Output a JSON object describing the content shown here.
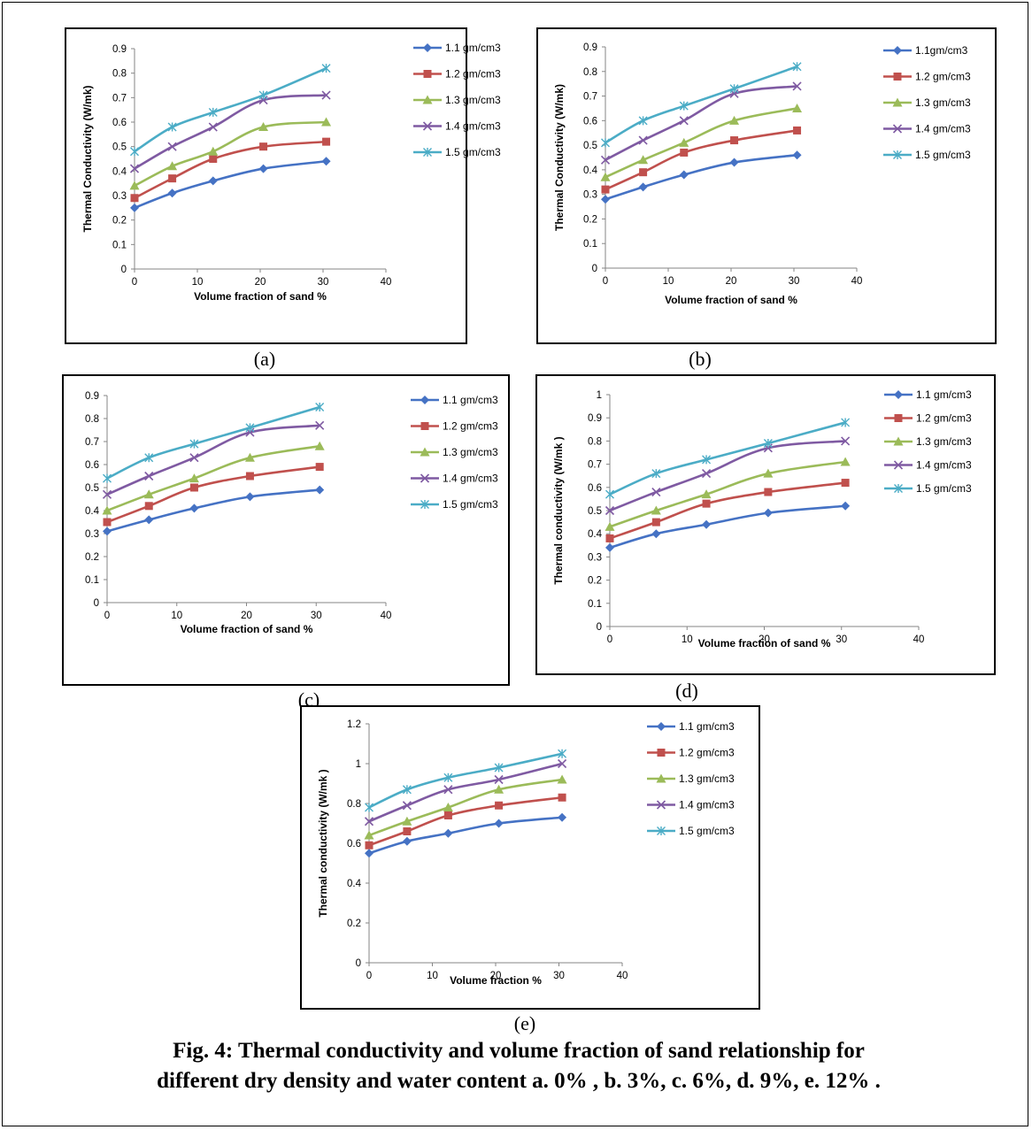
{
  "caption": {
    "line1": "Fig. 4:  Thermal conductivity and volume fraction of sand relationship for",
    "line2": "different dry density and water content a. 0% , b. 3%, c. 6%, d. 9%, e. 12% ."
  },
  "colors": {
    "1.1": "#4572C4",
    "1.2": "#C0504D",
    "1.3": "#9BBB59",
    "1.4": "#7F5AA2",
    "1.5": "#4BACC6"
  },
  "chart_data": [
    {
      "id": "a",
      "sub_label": "(a)",
      "type": "line",
      "title": "",
      "xlabel": "Volume fraction of sand %",
      "ylabel": "Thermal Conductivity (W/mk)",
      "x": [
        0,
        6,
        12.5,
        20.5,
        30.5
      ],
      "xlim": [
        0,
        40
      ],
      "xticks": [
        0,
        10,
        20,
        30,
        40
      ],
      "xtick_labels": [
        "0",
        "10",
        "20",
        "30",
        "40"
      ],
      "ylim": [
        0,
        0.9
      ],
      "yticks": [
        0,
        0.1,
        0.2,
        0.3,
        0.4,
        0.5,
        0.6,
        0.7,
        0.8,
        0.9
      ],
      "ytick_labels": [
        "0",
        "0.1",
        "0.2",
        "0.3",
        "0.4",
        "0.5",
        "0.6",
        "0.7",
        "0.8",
        "0.9"
      ],
      "legend_position": "right",
      "series": [
        {
          "name": "1.1 gm/cm3",
          "marker": "diamond",
          "color_key": "1.1",
          "values": [
            0.25,
            0.31,
            0.36,
            0.41,
            0.44
          ]
        },
        {
          "name": "1.2 gm/cm3",
          "marker": "square",
          "color_key": "1.2",
          "values": [
            0.29,
            0.37,
            0.45,
            0.5,
            0.52
          ]
        },
        {
          "name": "1.3 gm/cm3",
          "marker": "triangle",
          "color_key": "1.3",
          "values": [
            0.34,
            0.42,
            0.48,
            0.58,
            0.6
          ]
        },
        {
          "name": "1.4 gm/cm3",
          "marker": "x",
          "color_key": "1.4",
          "values": [
            0.41,
            0.5,
            0.58,
            0.69,
            0.71
          ]
        },
        {
          "name": "1.5 gm/cm3",
          "marker": "star",
          "color_key": "1.5",
          "values": [
            0.48,
            0.58,
            0.64,
            0.71,
            0.82
          ]
        }
      ]
    },
    {
      "id": "b",
      "sub_label": "(b)",
      "type": "line",
      "title": "",
      "xlabel": "Volume fraction of sand %",
      "ylabel": "Thermal Conductivity (W/mk)",
      "x": [
        0,
        6,
        12.5,
        20.5,
        30.5
      ],
      "xlim": [
        0,
        40
      ],
      "xticks": [
        0,
        10,
        20,
        30,
        40
      ],
      "xtick_labels": [
        "0",
        "10",
        "20",
        "30",
        "40"
      ],
      "ylim": [
        0,
        0.9
      ],
      "yticks": [
        0,
        0.1,
        0.2,
        0.3,
        0.4,
        0.5,
        0.6,
        0.7,
        0.8,
        0.9
      ],
      "ytick_labels": [
        "0",
        "0.1",
        "0.2",
        "0.3",
        "0.4",
        "0.5",
        "0.6",
        "0.7",
        "0.8",
        "0.9"
      ],
      "legend_position": "right",
      "series": [
        {
          "name": "1.1gm/cm3",
          "marker": "diamond",
          "color_key": "1.1",
          "values": [
            0.28,
            0.33,
            0.38,
            0.43,
            0.46
          ]
        },
        {
          "name": "1.2 gm/cm3",
          "marker": "square",
          "color_key": "1.2",
          "values": [
            0.32,
            0.39,
            0.47,
            0.52,
            0.56
          ]
        },
        {
          "name": "1.3 gm/cm3",
          "marker": "triangle",
          "color_key": "1.3",
          "values": [
            0.37,
            0.44,
            0.51,
            0.6,
            0.65
          ]
        },
        {
          "name": "1.4 gm/cm3",
          "marker": "x",
          "color_key": "1.4",
          "values": [
            0.44,
            0.52,
            0.6,
            0.71,
            0.74
          ]
        },
        {
          "name": "1.5 gm/cm3",
          "marker": "star",
          "color_key": "1.5",
          "values": [
            0.51,
            0.6,
            0.66,
            0.73,
            0.82
          ]
        }
      ]
    },
    {
      "id": "c",
      "sub_label": "(c)",
      "type": "line",
      "title": "",
      "xlabel": "Volume fraction of sand %",
      "ylabel": "",
      "x": [
        0,
        6,
        12.5,
        20.5,
        30.5
      ],
      "xlim": [
        0,
        40
      ],
      "xticks": [
        0,
        10,
        20,
        30,
        40
      ],
      "xtick_labels": [
        "0",
        "10",
        "20",
        "30",
        "40"
      ],
      "ylim": [
        0,
        0.9
      ],
      "yticks": [
        0,
        0.1,
        0.2,
        0.3,
        0.4,
        0.5,
        0.6,
        0.7,
        0.8,
        0.9
      ],
      "ytick_labels": [
        "0",
        "0.1",
        "0.2",
        "0.3",
        "0.4",
        "0.5",
        "0.6",
        "0.7",
        "0.8",
        "0.9"
      ],
      "legend_position": "right",
      "series": [
        {
          "name": "1.1 gm/cm3",
          "marker": "diamond",
          "color_key": "1.1",
          "values": [
            0.31,
            0.36,
            0.41,
            0.46,
            0.49
          ]
        },
        {
          "name": "1.2 gm/cm3",
          "marker": "square",
          "color_key": "1.2",
          "values": [
            0.35,
            0.42,
            0.5,
            0.55,
            0.59
          ]
        },
        {
          "name": "1.3 gm/cm3",
          "marker": "triangle",
          "color_key": "1.3",
          "values": [
            0.4,
            0.47,
            0.54,
            0.63,
            0.68
          ]
        },
        {
          "name": "1.4 gm/cm3",
          "marker": "x",
          "color_key": "1.4",
          "values": [
            0.47,
            0.55,
            0.63,
            0.74,
            0.77
          ]
        },
        {
          "name": "1.5 gm/cm3",
          "marker": "star",
          "color_key": "1.5",
          "values": [
            0.54,
            0.63,
            0.69,
            0.76,
            0.85
          ]
        }
      ]
    },
    {
      "id": "d",
      "sub_label": "(d)",
      "type": "line",
      "title": "",
      "xlabel": "Volume fraction of sand %",
      "ylabel": "Thermal conductivity (W/mk )",
      "x": [
        0,
        6,
        12.5,
        20.5,
        30.5
      ],
      "xlim": [
        0,
        40
      ],
      "xticks": [
        0,
        10,
        20,
        30,
        40
      ],
      "xtick_labels": [
        "0",
        "10",
        "20",
        "30",
        "40"
      ],
      "ylim": [
        0,
        1
      ],
      "yticks": [
        0,
        0.1,
        0.2,
        0.3,
        0.4,
        0.5,
        0.6,
        0.7,
        0.8,
        0.9,
        1
      ],
      "ytick_labels": [
        "0",
        "0.1",
        "0.2",
        "0.3",
        "0.4",
        "0.5",
        "0.6",
        "0.7",
        "0.8",
        "0.9",
        "1"
      ],
      "legend_position": "right",
      "series": [
        {
          "name": "1.1 gm/cm3",
          "marker": "diamond",
          "color_key": "1.1",
          "values": [
            0.34,
            0.4,
            0.44,
            0.49,
            0.52
          ]
        },
        {
          "name": "1.2 gm/cm3",
          "marker": "square",
          "color_key": "1.2",
          "values": [
            0.38,
            0.45,
            0.53,
            0.58,
            0.62
          ]
        },
        {
          "name": "1.3 gm/cm3",
          "marker": "triangle",
          "color_key": "1.3",
          "values": [
            0.43,
            0.5,
            0.57,
            0.66,
            0.71
          ]
        },
        {
          "name": "1.4 gm/cm3",
          "marker": "x",
          "color_key": "1.4",
          "values": [
            0.5,
            0.58,
            0.66,
            0.77,
            0.8
          ]
        },
        {
          "name": "1.5 gm/cm3",
          "marker": "star",
          "color_key": "1.5",
          "values": [
            0.57,
            0.66,
            0.72,
            0.79,
            0.88
          ]
        }
      ]
    },
    {
      "id": "e",
      "sub_label": "(e)",
      "type": "line",
      "title": "",
      "xlabel": "Volume fraction %",
      "ylabel": "Thermal conductivity  (W/mk )",
      "x": [
        0,
        6,
        12.5,
        20.5,
        30.5
      ],
      "xlim": [
        0,
        40
      ],
      "xticks": [
        0,
        10,
        20,
        30,
        40
      ],
      "xtick_labels": [
        "0",
        "10",
        "20",
        "30",
        "40"
      ],
      "ylim": [
        0,
        1.2
      ],
      "yticks": [
        0,
        0.2,
        0.4,
        0.6,
        0.8,
        1,
        1.2
      ],
      "ytick_labels": [
        "0",
        "0.2",
        "0.4",
        "0.6",
        "0.8",
        "1",
        "1.2"
      ],
      "legend_position": "right",
      "series": [
        {
          "name": "1.1 gm/cm3",
          "marker": "diamond",
          "color_key": "1.1",
          "values": [
            0.55,
            0.61,
            0.65,
            0.7,
            0.73
          ]
        },
        {
          "name": "1.2 gm/cm3",
          "marker": "square",
          "color_key": "1.2",
          "values": [
            0.59,
            0.66,
            0.74,
            0.79,
            0.83
          ]
        },
        {
          "name": "1.3 gm/cm3",
          "marker": "triangle",
          "color_key": "1.3",
          "values": [
            0.64,
            0.71,
            0.78,
            0.87,
            0.92
          ]
        },
        {
          "name": "1.4 gm/cm3",
          "marker": "x",
          "color_key": "1.4",
          "values": [
            0.71,
            0.79,
            0.87,
            0.92,
            1.0
          ]
        },
        {
          "name": "1.5 gm/cm3",
          "marker": "star",
          "color_key": "1.5",
          "values": [
            0.78,
            0.87,
            0.93,
            0.98,
            1.05
          ]
        }
      ]
    }
  ]
}
